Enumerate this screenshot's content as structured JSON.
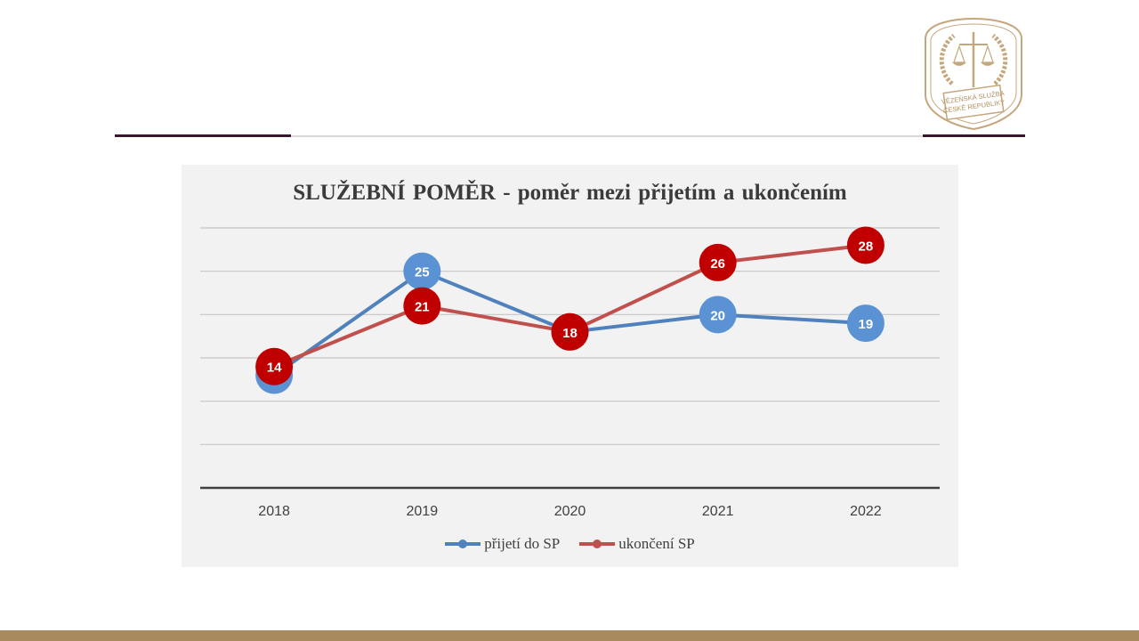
{
  "logo": {
    "line1": "VĚZEŇSKÁ SLUŽBA",
    "line2": "ČESKÉ REPUBLIKY"
  },
  "chart_data": {
    "type": "line",
    "title": "SLUŽEBNÍ POMĚR - poměr mezi přijetím a ukončením",
    "xlabel": "",
    "ylabel": "",
    "categories": [
      "2018",
      "2019",
      "2020",
      "2021",
      "2022"
    ],
    "ylim": [
      0,
      30
    ],
    "grid": true,
    "legend": "bottom",
    "series": [
      {
        "name": "přijetí do SP",
        "values": [
          13,
          25,
          18,
          20,
          19
        ],
        "labels": [
          "",
          "25",
          "",
          "20",
          "19"
        ],
        "color": "#4f81bd",
        "marker_color": "#5b92d4"
      },
      {
        "name": "ukončení SP",
        "values": [
          14,
          21,
          18,
          26,
          28
        ],
        "labels": [
          "14",
          "21",
          "18",
          "26",
          "28"
        ],
        "color": "#c0504d",
        "marker_color": "#c00000"
      }
    ]
  }
}
